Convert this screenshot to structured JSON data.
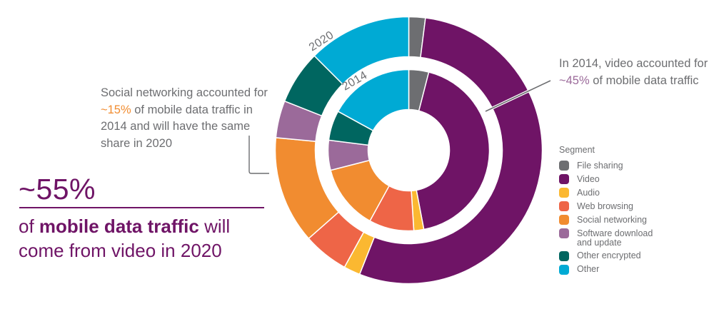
{
  "chart_data": {
    "type": "pie",
    "subtype": "nested-donut",
    "title": "",
    "legend_title": "Segment",
    "legend_placement": "right",
    "categories": [
      "File sharing",
      "Video",
      "Audio",
      "Web browsing",
      "Social networking",
      "Software download and update",
      "Other encrypted",
      "Other"
    ],
    "colors": [
      "#6d6e71",
      "#6f1466",
      "#fbb831",
      "#ee6547",
      "#f18c30",
      "#9b6a9a",
      "#006660",
      "#00aad4"
    ],
    "series": [
      {
        "name": "2014",
        "ring": "inner",
        "values": [
          4,
          43,
          2,
          9,
          13,
          6,
          6,
          17
        ]
      },
      {
        "name": "2020",
        "ring": "outer",
        "values": [
          2,
          54,
          2,
          5.5,
          13,
          4.5,
          6.5,
          12.5
        ]
      }
    ],
    "annotations": {
      "video_2014": {
        "parts": [
          "In 2014, video accounted for ",
          "~45%",
          " of mobile data traffic"
        ]
      },
      "social": {
        "parts": [
          "Social networking accounted for ",
          "~15%",
          " of mobile data traffic in 2014 and will have the same share in 2020"
        ]
      },
      "headline": {
        "value": "~55%",
        "bold": "of mobile data traffic",
        "after_bold": " will come from video in 2020",
        "before_bold": ""
      }
    }
  },
  "legend": {
    "title": "Segment",
    "items": [
      {
        "label": "File sharing",
        "color": "#6d6e71"
      },
      {
        "label": "Video",
        "color": "#6f1466"
      },
      {
        "label": "Audio",
        "color": "#fbb831"
      },
      {
        "label": "Web browsing",
        "color": "#ee6547"
      },
      {
        "label": "Social networking",
        "color": "#f18c30"
      },
      {
        "label": "Software download and update",
        "color": "#9b6a9a"
      },
      {
        "label": "Other encrypted",
        "color": "#006660"
      },
      {
        "label": "Other",
        "color": "#00aad4"
      }
    ]
  },
  "ring_labels": {
    "outer": "2020",
    "inner": "2014"
  },
  "notes": {
    "right": {
      "pre": "In 2014, video accounted for ",
      "highlight": "~45%",
      "post": " of mobile data traffic"
    },
    "left": {
      "pre": "Social networking accounted for ",
      "highlight": "~15%",
      "post": " of mobile data traffic in 2014 and will have the same share in 2020"
    }
  },
  "headline": {
    "value": "~55%",
    "pre": "of ",
    "bold": "mobile data traffic",
    "post": " will come from video in 2020"
  },
  "accent_color": "#6f1466"
}
